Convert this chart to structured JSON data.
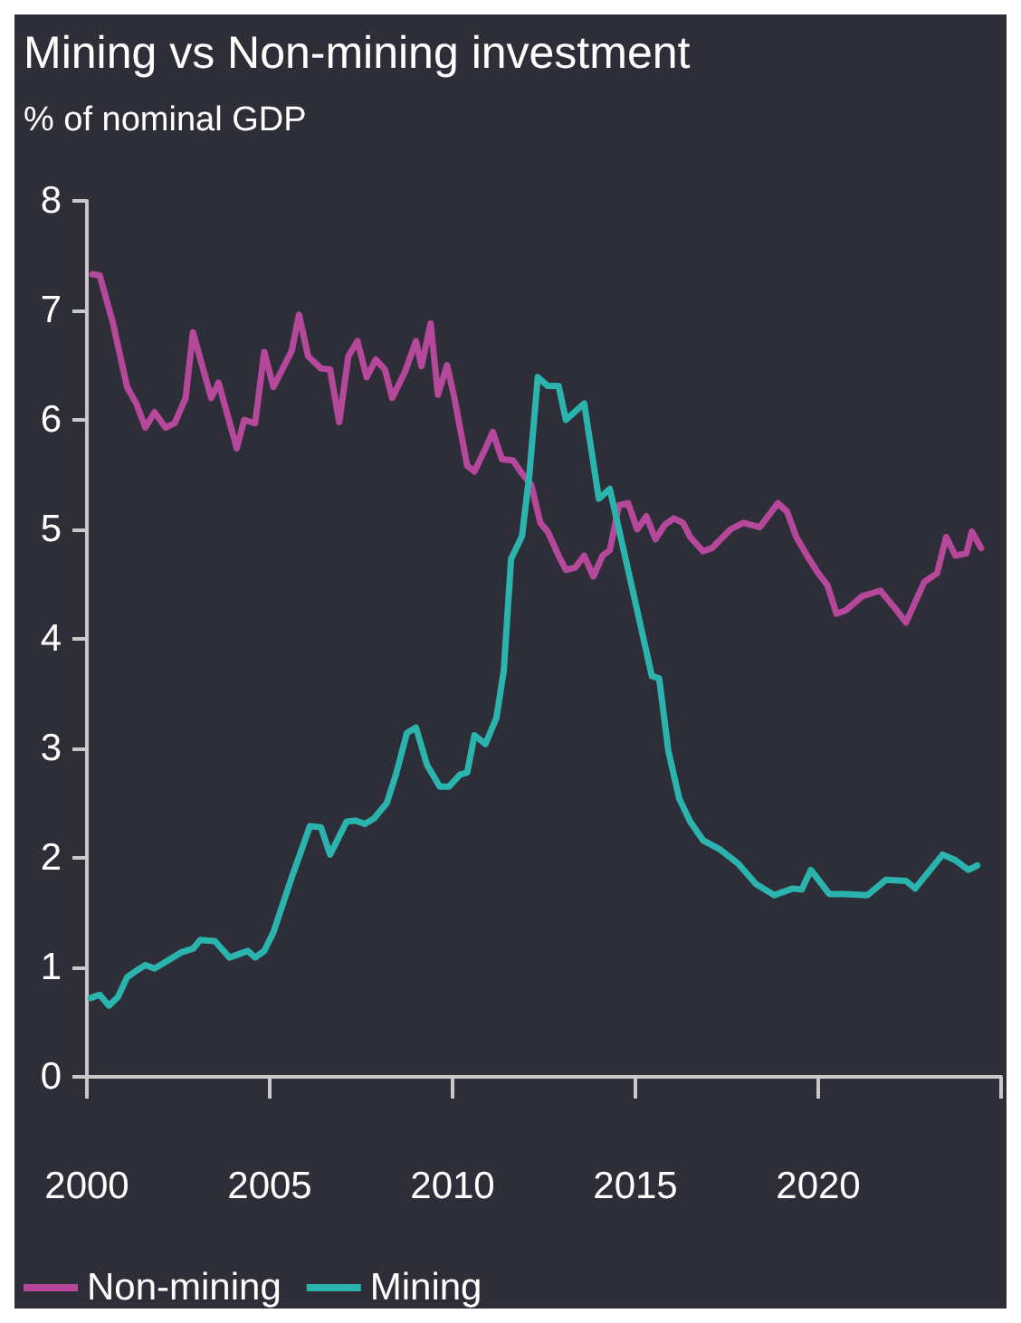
{
  "chart_data": {
    "type": "line",
    "title": "Mining vs Non-mining investment",
    "subtitle": "% of nominal GDP",
    "xlim": [
      2000,
      2025
    ],
    "xticks": [
      2000,
      2005,
      2010,
      2015,
      2020,
      {
        "value": 2025,
        "label": null
      }
    ],
    "ylim": [
      0,
      8
    ],
    "yticks": [
      0,
      1,
      2,
      3,
      4,
      5,
      6,
      7,
      8
    ],
    "grid": false,
    "legend": "bottom left",
    "marker": "none",
    "line_style": "solid",
    "series": [
      {
        "name": "Non-mining",
        "color": "#b5489a",
        "x": [
          2000.15,
          2000.35,
          2000.7,
          2001.1,
          2001.35,
          2001.6,
          2001.85,
          2002.15,
          2002.4,
          2002.7,
          2002.9,
          2003.4,
          2003.6,
          2004.1,
          2004.3,
          2004.6,
          2004.85,
          2005.1,
          2005.6,
          2005.8,
          2006.05,
          2006.4,
          2006.65,
          2006.9,
          2007.15,
          2007.4,
          2007.65,
          2007.9,
          2008.15,
          2008.35,
          2008.7,
          2009.0,
          2009.15,
          2009.4,
          2009.6,
          2009.85,
          2010.05,
          2010.4,
          2010.6,
          2010.9,
          2011.1,
          2011.35,
          2011.65,
          2011.9,
          2012.15,
          2012.4,
          2012.6,
          2012.9,
          2013.1,
          2013.35,
          2013.6,
          2013.85,
          2014.1,
          2014.3,
          2014.55,
          2014.8,
          2015.05,
          2015.3,
          2015.55,
          2015.8,
          2016.05,
          2016.3,
          2016.5,
          2016.85,
          2017.1,
          2017.6,
          2017.95,
          2018.4,
          2018.9,
          2019.15,
          2019.4,
          2019.75,
          2020.0,
          2020.25,
          2020.5,
          2020.75,
          2021.2,
          2021.7,
          2022.1,
          2022.4,
          2022.9,
          2023.25,
          2023.5,
          2023.75,
          2024.05,
          2024.2,
          2024.45
        ],
        "values": [
          7.33,
          7.32,
          6.9,
          6.3,
          6.15,
          5.93,
          6.07,
          5.93,
          5.97,
          6.2,
          6.8,
          6.2,
          6.34,
          5.74,
          6.0,
          5.97,
          6.62,
          6.3,
          6.63,
          6.96,
          6.58,
          6.47,
          6.46,
          5.98,
          6.58,
          6.72,
          6.39,
          6.55,
          6.46,
          6.2,
          6.44,
          6.72,
          6.49,
          6.88,
          6.23,
          6.5,
          6.2,
          5.58,
          5.53,
          5.74,
          5.89,
          5.64,
          5.63,
          5.51,
          5.41,
          5.06,
          4.98,
          4.76,
          4.63,
          4.65,
          4.76,
          4.57,
          4.76,
          4.81,
          5.22,
          5.24,
          5.0,
          5.12,
          4.91,
          5.04,
          5.1,
          5.06,
          4.93,
          4.8,
          4.83,
          5.0,
          5.06,
          5.02,
          5.24,
          5.16,
          4.93,
          4.73,
          4.6,
          4.49,
          4.23,
          4.26,
          4.39,
          4.44,
          4.28,
          4.15,
          4.52,
          4.6,
          4.93,
          4.76,
          4.78,
          4.98,
          4.83
        ]
      },
      {
        "name": "Mining",
        "color": "#2bb3ad",
        "x": [
          2000.1,
          2000.35,
          2000.6,
          2000.85,
          2001.1,
          2001.4,
          2001.6,
          2001.85,
          2002.2,
          2002.6,
          2002.9,
          2003.1,
          2003.5,
          2003.9,
          2004.4,
          2004.6,
          2004.85,
          2005.1,
          2005.6,
          2006.1,
          2006.4,
          2006.65,
          2007.1,
          2007.35,
          2007.6,
          2007.85,
          2008.2,
          2008.45,
          2008.75,
          2009.0,
          2009.3,
          2009.65,
          2009.9,
          2010.2,
          2010.4,
          2010.6,
          2010.9,
          2011.2,
          2011.4,
          2011.6,
          2011.9,
          2012.1,
          2012.33,
          2012.6,
          2012.9,
          2013.1,
          2013.6,
          2014.0,
          2014.3,
          2014.8,
          2015.15,
          2015.45,
          2015.65,
          2015.9,
          2016.2,
          2016.5,
          2016.85,
          2017.3,
          2017.8,
          2018.3,
          2018.8,
          2019.3,
          2019.55,
          2019.8,
          2020.3,
          2020.7,
          2021.35,
          2021.85,
          2022.4,
          2022.65,
          2023.4,
          2023.75,
          2024.1,
          2024.35
        ],
        "values": [
          0.72,
          0.75,
          0.65,
          0.73,
          0.91,
          0.98,
          1.02,
          0.99,
          1.06,
          1.14,
          1.17,
          1.25,
          1.24,
          1.09,
          1.15,
          1.09,
          1.15,
          1.32,
          1.82,
          2.29,
          2.28,
          2.03,
          2.33,
          2.34,
          2.31,
          2.36,
          2.5,
          2.76,
          3.14,
          3.19,
          2.85,
          2.65,
          2.65,
          2.76,
          2.78,
          3.12,
          3.04,
          3.28,
          3.71,
          4.73,
          4.94,
          5.5,
          6.39,
          6.31,
          6.31,
          6.0,
          6.15,
          5.28,
          5.37,
          4.63,
          4.11,
          3.66,
          3.64,
          2.98,
          2.54,
          2.33,
          2.16,
          2.08,
          1.95,
          1.76,
          1.66,
          1.72,
          1.71,
          1.89,
          1.67,
          1.67,
          1.66,
          1.8,
          1.79,
          1.72,
          2.03,
          1.98,
          1.89,
          1.93
        ]
      }
    ]
  }
}
